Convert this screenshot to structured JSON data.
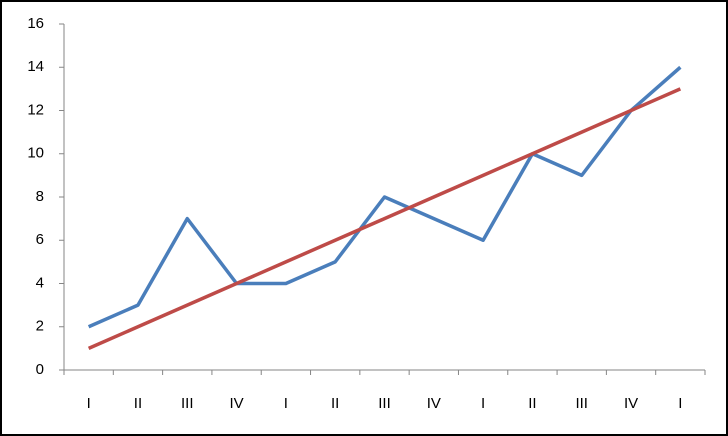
{
  "chart_data": {
    "type": "line",
    "categories": [
      "I",
      "II",
      "III",
      "IV",
      "I",
      "II",
      "III",
      "IV",
      "I",
      "II",
      "III",
      "IV",
      "I"
    ],
    "series": [
      {
        "color": "#4a7ebb",
        "values": [
          2,
          3,
          7,
          4,
          4,
          5,
          8,
          7,
          6,
          10,
          9,
          12,
          14
        ]
      },
      {
        "color": "#be4b48",
        "values": [
          1,
          2,
          3,
          4,
          5,
          6,
          7,
          8,
          9,
          10,
          11,
          12,
          13
        ]
      }
    ],
    "ylim": [
      0,
      16
    ],
    "yticks": [
      0,
      2,
      4,
      6,
      8,
      10,
      12,
      14,
      16
    ],
    "grid": false
  }
}
